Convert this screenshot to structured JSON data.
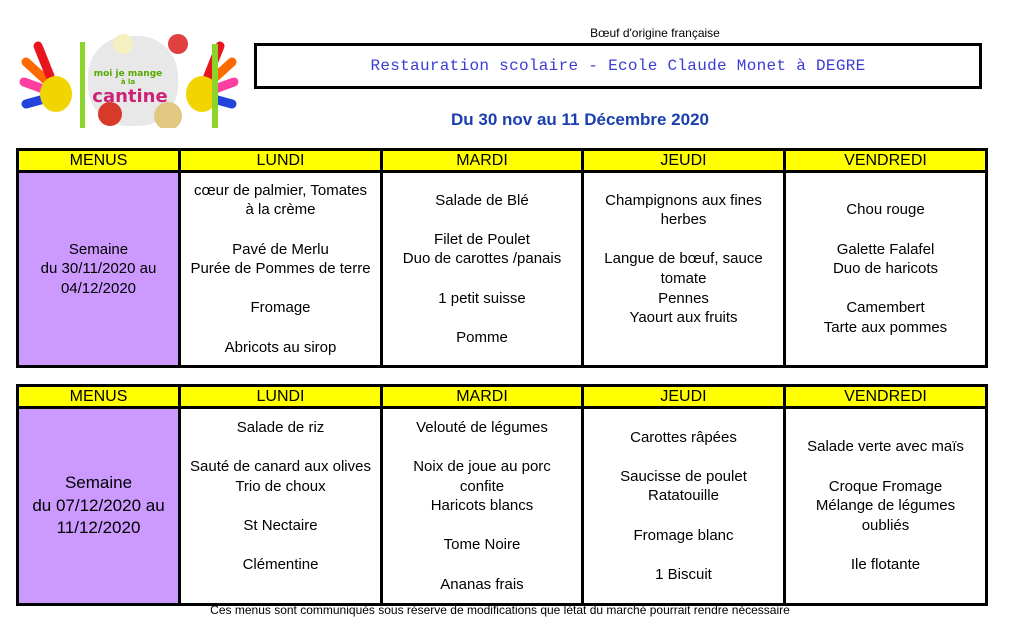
{
  "header": {
    "logo_text": "moi je mange à la cantine",
    "origin_note": "Bœuf d'origine française",
    "title": "Restauration scolaire - Ecole Claude Monet à DEGRE",
    "dates": "Du  30 nov au 11 Décembre 2020"
  },
  "columns": [
    "MENUS",
    "LUNDI",
    "MARDI",
    "JEUDI",
    "VENDREDI"
  ],
  "weeks": [
    {
      "label": [
        "Semaine",
        "du  30/11/2020 au",
        "04/12/2020"
      ],
      "days": [
        [
          "cœur de palmier, Tomates",
          "à la crème",
          "",
          "Pavé de Merlu",
          "Purée de Pommes de terre",
          "",
          "Fromage",
          "",
          "Abricots au sirop"
        ],
        [
          "Salade de Blé",
          "",
          "Filet de Poulet",
          "Duo de carottes /panais",
          "",
          "1 petit suisse",
          "",
          "Pomme"
        ],
        [
          "Champignons aux fines",
          "herbes",
          "",
          "Langue de bœuf, sauce",
          "tomate",
          "Pennes",
          "Yaourt aux fruits",
          ""
        ],
        [
          "Chou rouge",
          "",
          "Galette Falafel",
          "Duo de haricots",
          "",
          "Camembert",
          "Tarte aux pommes"
        ]
      ]
    },
    {
      "label": [
        "Semaine",
        "du 07/12/2020 au",
        "11/12/2020"
      ],
      "days": [
        [
          "Salade de riz",
          "",
          "Sauté de canard aux olives",
          "Trio de choux",
          "",
          "St Nectaire",
          "",
          "Clémentine",
          ""
        ],
        [
          "Velouté de légumes",
          "",
          "Noix de joue au porc",
          "confite",
          "Haricots blancs",
          "",
          "Tome Noire",
          "",
          "Ananas frais"
        ],
        [
          "Carottes râpées",
          "",
          "Saucisse de poulet",
          "Ratatouille",
          "",
          "Fromage blanc",
          "",
          "1 Biscuit"
        ],
        [
          "Salade verte avec maïs",
          "",
          "Croque Fromage",
          "Mélange de légumes",
          "oubliés",
          "",
          "Ile flotante"
        ]
      ]
    }
  ],
  "footer": "Ces menus sont communiqués sous réserve de modifications que létat du marché pourrait rendre nécessaire",
  "colors": {
    "header_bg": "#ffff00",
    "week_bg": "#cc99ff",
    "title": "#3b3bd6",
    "dates": "#1a3fb0"
  }
}
